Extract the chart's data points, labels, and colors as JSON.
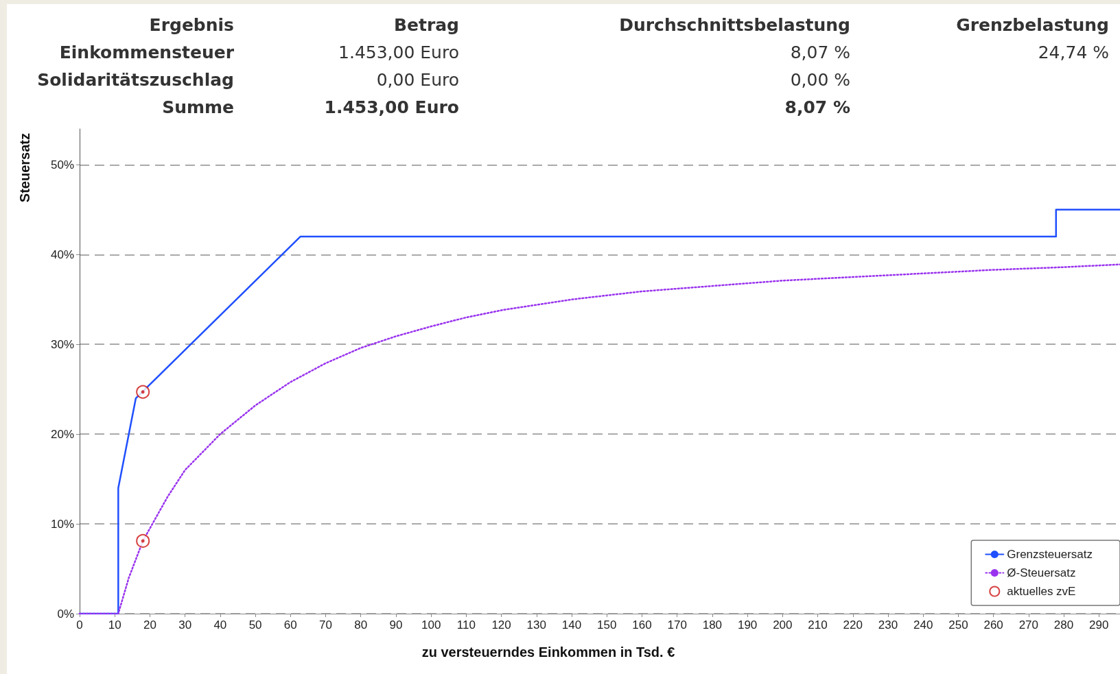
{
  "chart_data": {
    "type": "line",
    "xlabel": "zu versteuerndes Einkommen in Tsd. €",
    "ylabel": "Steuersatz",
    "annotations": [
      "Ergebnis",
      "Betrag",
      "Durchschnittsbelastung",
      "Grenzbelastung",
      "Einkommensteuer",
      "1.453,00 Euro",
      "8,07 %",
      "24,74 %",
      "Solidaritätszuschlag",
      "0,00 Euro",
      "0,00 %",
      "Summe",
      "1.453,00 Euro",
      "8,07 %"
    ],
    "series": [
      {
        "name": "Grenzsteuersatz",
        "type": "line",
        "color": "#1f4fff",
        "line_style": "solid",
        "marker": "none",
        "x": [
          0,
          11,
          11,
          16,
          62.8,
          277.8,
          277.8,
          296
        ],
        "values": [
          0,
          0,
          14,
          24,
          42,
          42,
          45,
          45
        ]
      },
      {
        "name": "Ø-Steuersatz",
        "type": "line",
        "color": "#9933ee",
        "line_style": "dotted",
        "marker": "none",
        "x": [
          0,
          11,
          14,
          18,
          20,
          25,
          30,
          40,
          50,
          60,
          70,
          80,
          90,
          100,
          110,
          120,
          140,
          160,
          180,
          200,
          220,
          240,
          260,
          280,
          296
        ],
        "values": [
          0,
          0,
          4,
          8.1,
          9.5,
          13,
          16,
          20,
          23.2,
          25.8,
          27.9,
          29.6,
          30.9,
          32,
          33,
          33.8,
          35,
          35.9,
          36.5,
          37.1,
          37.5,
          37.9,
          38.3,
          38.6,
          38.9
        ]
      },
      {
        "name": "aktuelles zvE",
        "type": "scatter",
        "color": "#cc1111",
        "marker": "circle",
        "x": [
          18,
          18
        ],
        "values": [
          24.7,
          8.1
        ]
      }
    ],
    "xlim": [
      0,
      296
    ],
    "xticks": [
      0,
      10,
      20,
      30,
      40,
      50,
      60,
      70,
      80,
      90,
      100,
      110,
      120,
      130,
      140,
      150,
      160,
      170,
      180,
      190,
      200,
      210,
      220,
      230,
      240,
      250,
      260,
      270,
      280,
      290
    ],
    "ylim": [
      0,
      54
    ],
    "yticks": [
      {
        "value": 0,
        "label": "0%"
      },
      {
        "value": 10,
        "label": "10%"
      },
      {
        "value": 20,
        "label": "20%"
      },
      {
        "value": 30,
        "label": "30%"
      },
      {
        "value": 40,
        "label": "40%"
      },
      {
        "value": 50,
        "label": "50%"
      }
    ],
    "grid": "y",
    "legend": "bottom right"
  }
}
